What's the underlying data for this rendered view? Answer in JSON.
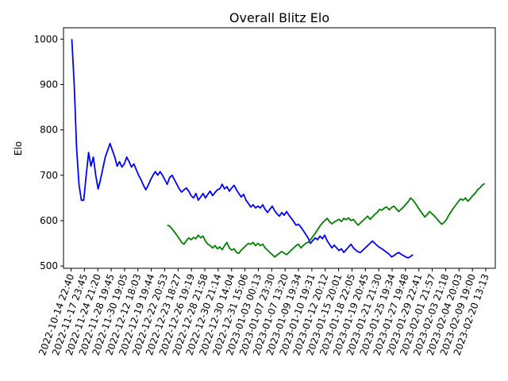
{
  "chart_data": {
    "type": "line",
    "title": "Overall Blitz Elo",
    "xlabel": "",
    "ylabel": "Elo",
    "ylim": [
      495,
      1025
    ],
    "yticks": [
      500,
      600,
      700,
      800,
      900,
      1000
    ],
    "grid": false,
    "xtick_labels": [
      "2022-10-14 22:40",
      "2022-11-17 23:45",
      "2022-11-24 21:20",
      "2022-11-28 19:45",
      "2022-11-30 19:05",
      "2022-12-12 18:03",
      "2022-12-19 19:44",
      "2022-12-22 20:53",
      "2022-12-23 18:27",
      "2022-12-26 19:19",
      "2022-12-28 21:58",
      "2022-12-30 21:14",
      "2022-12-30 14:04",
      "2022-12-31 15:06",
      "2023-01-03 00:13",
      "2023-01-07 23:30",
      "2023-01-07 13:20",
      "2023-01-09 19:34",
      "2023-01-10 19:31",
      "2023-01-12 20:12",
      "2023-01-15 20:01",
      "2023-01-18 22:05",
      "2023-01-19 20:45",
      "2023-01-21 21:30",
      "2023-01-25 19:34",
      "2023-01-27 19:48",
      "2023-01-29 22:41",
      "2023-02-01 21:57",
      "2023-02-03 21:18",
      "2023-02-04 20:03",
      "2023-02-09 19:00",
      "2023-02-20 13:13"
    ],
    "x_range": [
      -3.5,
      177.5
    ],
    "series": [
      {
        "color": "#0000ff",
        "x": [
          0,
          1,
          2,
          3,
          4,
          5,
          6,
          7,
          8,
          9,
          10,
          11,
          12,
          13,
          14,
          15,
          16,
          17,
          18,
          19,
          20,
          21,
          22,
          23,
          24,
          25,
          26,
          27,
          28,
          29,
          30,
          31,
          32,
          33,
          34,
          35,
          36,
          37,
          38,
          39,
          40,
          41,
          42,
          43,
          44,
          45,
          46,
          47,
          48,
          49,
          50,
          51,
          52,
          53,
          54,
          55,
          56,
          57,
          58,
          59,
          60,
          61,
          62,
          63,
          64,
          65,
          66,
          67,
          68,
          69,
          70,
          71,
          72,
          73,
          74,
          75,
          76,
          77,
          78,
          79,
          80,
          81,
          82,
          83,
          84,
          85,
          86,
          87,
          88,
          89,
          90,
          91,
          92,
          93,
          94,
          95,
          96,
          97,
          98,
          99,
          100,
          101,
          102,
          103,
          104,
          105,
          106,
          107,
          108,
          109,
          110,
          111,
          112,
          113,
          114,
          115,
          116,
          117,
          118,
          119,
          120,
          121,
          122,
          123,
          124,
          125,
          126,
          127,
          128,
          129,
          130,
          131,
          132,
          133,
          134,
          135,
          136,
          137,
          138,
          139,
          140,
          141,
          142,
          143
        ],
        "y": [
          1000,
          900,
          760,
          680,
          645,
          645,
          700,
          750,
          720,
          740,
          700,
          670,
          690,
          715,
          740,
          755,
          770,
          755,
          740,
          720,
          730,
          718,
          725,
          740,
          730,
          718,
          725,
          712,
          700,
          690,
          678,
          668,
          678,
          690,
          700,
          708,
          700,
          708,
          700,
          690,
          680,
          695,
          700,
          690,
          680,
          670,
          663,
          668,
          672,
          665,
          655,
          650,
          660,
          645,
          652,
          660,
          650,
          658,
          665,
          655,
          662,
          668,
          670,
          680,
          670,
          675,
          665,
          672,
          678,
          668,
          660,
          652,
          658,
          645,
          638,
          630,
          635,
          628,
          632,
          628,
          635,
          625,
          618,
          625,
          632,
          622,
          615,
          610,
          618,
          612,
          620,
          612,
          605,
          598,
          590,
          592,
          586,
          578,
          570,
          562,
          550,
          556,
          562,
          558,
          566,
          560,
          568,
          556,
          548,
          540,
          546,
          540,
          534,
          538,
          530,
          536,
          542,
          548,
          540,
          535,
          531,
          530,
          535,
          540,
          545,
          550,
          555,
          550,
          545,
          541,
          538,
          534,
          530,
          526,
          520,
          523,
          527,
          530,
          526,
          523,
          520,
          518,
          521,
          525
        ]
      },
      {
        "color": "#008000",
        "x": [
          40,
          41,
          42,
          43,
          44,
          45,
          46,
          47,
          48,
          49,
          50,
          51,
          52,
          53,
          54,
          55,
          56,
          57,
          58,
          59,
          60,
          61,
          62,
          63,
          64,
          65,
          66,
          67,
          68,
          69,
          70,
          71,
          72,
          73,
          74,
          75,
          76,
          77,
          78,
          79,
          80,
          81,
          82,
          83,
          84,
          85,
          86,
          87,
          88,
          89,
          90,
          91,
          92,
          93,
          94,
          95,
          96,
          97,
          98,
          99,
          100,
          101,
          102,
          103,
          104,
          105,
          106,
          107,
          108,
          109,
          110,
          111,
          112,
          113,
          114,
          115,
          116,
          117,
          118,
          119,
          120,
          121,
          122,
          123,
          124,
          125,
          126,
          127,
          128,
          129,
          130,
          131,
          132,
          133,
          134,
          135,
          136,
          137,
          138,
          139,
          140,
          141,
          142,
          143,
          144,
          145,
          146,
          147,
          148,
          149,
          150,
          151,
          152,
          153,
          154,
          155,
          156,
          157,
          158,
          159,
          160,
          161,
          162,
          163,
          164,
          165,
          166,
          167,
          168,
          169,
          170,
          171,
          172,
          173
        ],
        "y": [
          590,
          588,
          582,
          575,
          568,
          560,
          552,
          548,
          556,
          562,
          558,
          563,
          560,
          568,
          562,
          566,
          555,
          548,
          545,
          540,
          545,
          538,
          542,
          536,
          545,
          552,
          540,
          535,
          538,
          530,
          528,
          535,
          540,
          545,
          550,
          548,
          552,
          545,
          550,
          545,
          548,
          540,
          535,
          530,
          525,
          520,
          524,
          528,
          532,
          528,
          525,
          530,
          535,
          540,
          545,
          548,
          540,
          545,
          550,
          552,
          558,
          565,
          572,
          580,
          588,
          595,
          600,
          605,
          598,
          593,
          597,
          600,
          603,
          598,
          605,
          602,
          606,
          600,
          603,
          596,
          590,
          595,
          600,
          605,
          610,
          603,
          608,
          614,
          618,
          625,
          623,
          628,
          630,
          624,
          629,
          632,
          626,
          620,
          625,
          630,
          636,
          642,
          650,
          645,
          638,
          630,
          622,
          615,
          608,
          614,
          620,
          615,
          610,
          604,
          598,
          592,
          596,
          602,
          612,
          620,
          628,
          635,
          642,
          648,
          645,
          650,
          643,
          648,
          655,
          660,
          668,
          672,
          678,
          682
        ]
      }
    ]
  }
}
